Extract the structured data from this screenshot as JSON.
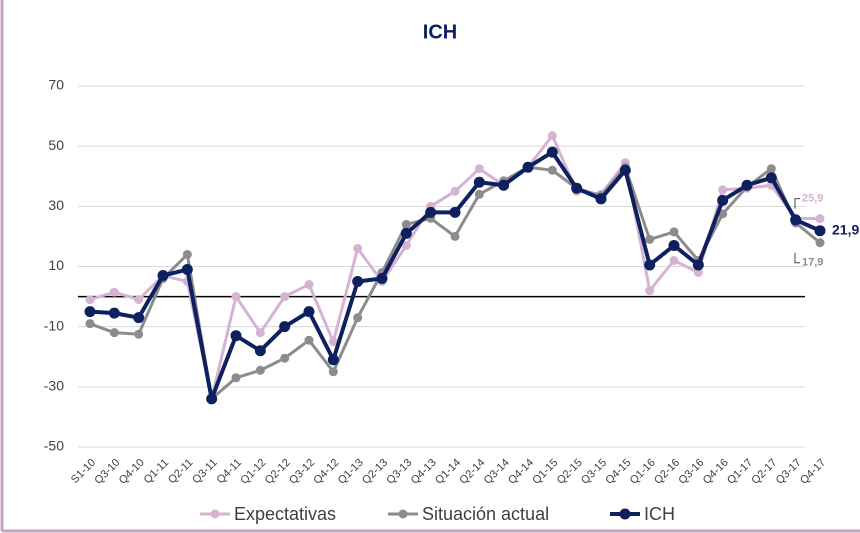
{
  "chart_data": {
    "type": "line",
    "title": "ICH",
    "categories": [
      "S1-10",
      "Q3-10",
      "Q4-10",
      "Q1-11",
      "Q2-11",
      "Q3-11",
      "Q4-11",
      "Q1-12",
      "Q2-12",
      "Q3-12",
      "Q4-12",
      "Q1-13",
      "Q2-13",
      "Q3-13",
      "Q4-13",
      "Q1-14",
      "Q2-14",
      "Q3-14",
      "Q4-14",
      "Q1-15",
      "Q2-15",
      "Q3-15",
      "Q4-15",
      "Q1-16",
      "Q2-16",
      "Q3-16",
      "Q4-16",
      "Q1-17",
      "Q2-17",
      "Q3-17",
      "Q4-17"
    ],
    "series": [
      {
        "name": "Expectativas",
        "color": "#d5b3d3",
        "values": [
          -1,
          1.5,
          -1,
          7,
          5,
          -34,
          0,
          -12,
          0,
          4,
          -15,
          16,
          5,
          17,
          30,
          35,
          42.5,
          37,
          43,
          53.5,
          35,
          34,
          44.5,
          2,
          12,
          8,
          35.5,
          36,
          37,
          26,
          25.9
        ],
        "value_labels": [
          null,
          null,
          null,
          null,
          null,
          null,
          null,
          null,
          null,
          null,
          null,
          null,
          null,
          null,
          null,
          null,
          null,
          null,
          null,
          null,
          null,
          null,
          null,
          null,
          null,
          null,
          null,
          null,
          null,
          null,
          "25,9"
        ]
      },
      {
        "name": "Situación actual",
        "color": "#8c8c8c",
        "values": [
          -9,
          -12,
          -12.5,
          6,
          14,
          -34,
          -27,
          -24.5,
          -20.5,
          -14.5,
          -25,
          -7,
          8,
          24,
          26,
          20,
          34,
          38.5,
          43,
          42,
          36,
          33.5,
          43,
          19,
          21.5,
          12,
          27.5,
          36.5,
          42.5,
          24.5,
          17.9
        ],
        "value_labels": [
          null,
          null,
          null,
          null,
          null,
          null,
          null,
          null,
          null,
          null,
          null,
          null,
          null,
          null,
          null,
          null,
          null,
          null,
          null,
          null,
          null,
          null,
          null,
          null,
          null,
          null,
          null,
          null,
          null,
          null,
          "17,9"
        ]
      },
      {
        "name": "ICH",
        "color": "#0e2060",
        "values": [
          -5,
          -5.5,
          -7,
          7,
          9,
          -34,
          -13,
          -18,
          -10,
          -5,
          -21,
          5,
          6,
          21,
          28,
          28,
          38,
          37,
          43,
          48,
          36,
          32.5,
          42,
          10.5,
          17,
          10.5,
          32,
          37,
          39.5,
          25.5,
          21.9
        ],
        "value_labels": [
          null,
          null,
          null,
          null,
          null,
          null,
          null,
          null,
          null,
          null,
          null,
          null,
          null,
          null,
          null,
          null,
          null,
          null,
          null,
          null,
          null,
          null,
          null,
          null,
          null,
          null,
          null,
          null,
          null,
          null,
          "21,9"
        ]
      }
    ],
    "ylim": [
      -50,
      70
    ],
    "yticks": [
      -50,
      -30,
      -10,
      10,
      30,
      50,
      70
    ],
    "grid": true,
    "legend": "bottom"
  }
}
